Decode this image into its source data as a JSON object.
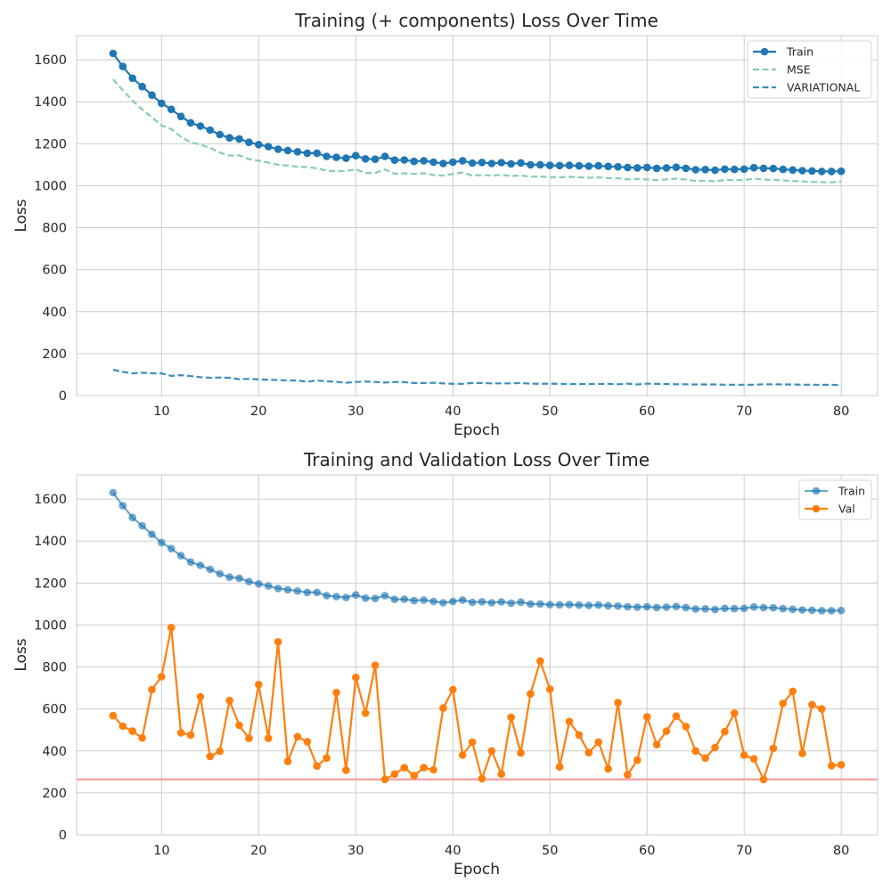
{
  "chart_data": [
    {
      "type": "line",
      "title": "Training (+ components) Loss Over Time",
      "xlabel": "Epoch",
      "ylabel": "Loss",
      "xlim": [
        1.25,
        83.75
      ],
      "ylim": [
        0,
        1715
      ],
      "xticks": [
        10,
        20,
        30,
        40,
        50,
        60,
        70,
        80
      ],
      "yticks": [
        0,
        200,
        400,
        600,
        800,
        1000,
        1200,
        1400,
        1600
      ],
      "grid": true,
      "legend_position": "top-right",
      "x_start": 5,
      "series": [
        {
          "name": "Train",
          "color": "#1f77b4",
          "style": "solid-marker",
          "values": [
            1630,
            1568,
            1512,
            1472,
            1432,
            1393,
            1364,
            1330,
            1300,
            1284,
            1265,
            1244,
            1228,
            1223,
            1207,
            1196,
            1186,
            1174,
            1168,
            1162,
            1155,
            1155,
            1140,
            1135,
            1131,
            1143,
            1128,
            1126,
            1140,
            1122,
            1123,
            1116,
            1119,
            1112,
            1106,
            1112,
            1119,
            1108,
            1111,
            1106,
            1110,
            1104,
            1109,
            1100,
            1100,
            1097,
            1096,
            1097,
            1095,
            1093,
            1095,
            1092,
            1090,
            1087,
            1085,
            1087,
            1083,
            1085,
            1088,
            1083,
            1076,
            1077,
            1074,
            1079,
            1078,
            1079,
            1086,
            1083,
            1082,
            1078,
            1075,
            1072,
            1070,
            1068,
            1068,
            1069
          ]
        },
        {
          "name": "MSE",
          "color": "#88ccb4",
          "style": "dashed",
          "values": [
            1507,
            1455,
            1406,
            1363,
            1326,
            1287,
            1270,
            1233,
            1207,
            1196,
            1180,
            1158,
            1143,
            1145,
            1127,
            1119,
            1110,
            1100,
            1096,
            1090,
            1089,
            1083,
            1072,
            1069,
            1070,
            1078,
            1061,
            1061,
            1078,
            1057,
            1059,
            1056,
            1059,
            1051,
            1048,
            1056,
            1063,
            1048,
            1051,
            1048,
            1052,
            1046,
            1049,
            1043,
            1044,
            1040,
            1040,
            1042,
            1040,
            1038,
            1040,
            1036,
            1036,
            1030,
            1032,
            1030,
            1027,
            1030,
            1034,
            1029,
            1023,
            1024,
            1021,
            1027,
            1026,
            1027,
            1034,
            1029,
            1028,
            1025,
            1022,
            1020,
            1018,
            1017,
            1016,
            1020
          ]
        },
        {
          "name": "VARIATIONAL",
          "color": "#3e8ebf",
          "style": "dashed",
          "values": [
            123,
            113,
            106,
            109,
            106,
            106,
            94,
            97,
            93,
            88,
            85,
            86,
            85,
            78,
            80,
            77,
            76,
            74,
            72,
            72,
            66,
            72,
            68,
            66,
            61,
            65,
            67,
            65,
            62,
            65,
            64,
            60,
            60,
            61,
            58,
            56,
            56,
            60,
            60,
            58,
            58,
            58,
            60,
            57,
            56,
            57,
            56,
            55,
            55,
            55,
            55,
            56,
            54,
            57,
            53,
            57,
            56,
            55,
            54,
            54,
            53,
            53,
            53,
            52,
            52,
            52,
            52,
            54,
            54,
            53,
            53,
            52,
            52,
            51,
            52,
            49
          ]
        }
      ]
    },
    {
      "type": "line",
      "title": "Training and Validation Loss Over Time",
      "xlabel": "Epoch",
      "ylabel": "Loss",
      "xlim": [
        1.25,
        83.75
      ],
      "ylim": [
        0,
        1715
      ],
      "xticks": [
        10,
        20,
        30,
        40,
        50,
        60,
        70,
        80
      ],
      "yticks": [
        0,
        200,
        400,
        600,
        800,
        1000,
        1200,
        1400,
        1600
      ],
      "grid": true,
      "legend_position": "top-right",
      "x_start": 5,
      "hline": {
        "y": 264,
        "color": "#f4a6a6"
      },
      "series": [
        {
          "name": "Train",
          "color": "#1f77b4",
          "style": "solid-marker-faded",
          "values": [
            1630,
            1568,
            1512,
            1472,
            1432,
            1393,
            1364,
            1330,
            1300,
            1284,
            1265,
            1244,
            1228,
            1223,
            1207,
            1196,
            1186,
            1174,
            1168,
            1162,
            1155,
            1155,
            1140,
            1135,
            1131,
            1143,
            1128,
            1126,
            1140,
            1122,
            1123,
            1116,
            1119,
            1112,
            1106,
            1112,
            1119,
            1108,
            1111,
            1106,
            1110,
            1104,
            1109,
            1100,
            1100,
            1097,
            1096,
            1097,
            1095,
            1093,
            1095,
            1092,
            1090,
            1087,
            1085,
            1087,
            1083,
            1085,
            1088,
            1083,
            1076,
            1077,
            1074,
            1079,
            1078,
            1079,
            1086,
            1083,
            1082,
            1078,
            1075,
            1072,
            1070,
            1068,
            1068,
            1069
          ]
        },
        {
          "name": "Val",
          "color": "#ff7f0e",
          "style": "solid-marker",
          "values": [
            568,
            518,
            494,
            462,
            692,
            754,
            988,
            486,
            476,
            658,
            374,
            398,
            640,
            522,
            460,
            716,
            460,
            920,
            350,
            468,
            444,
            328,
            366,
            678,
            308,
            750,
            580,
            808,
            264,
            290,
            320,
            282,
            320,
            310,
            604,
            692,
            380,
            442,
            268,
            400,
            290,
            560,
            390,
            672,
            828,
            694,
            324,
            540,
            476,
            392,
            442,
            314,
            630,
            286,
            356,
            562,
            430,
            494,
            566,
            516,
            400,
            366,
            416,
            492,
            580,
            380,
            362,
            264,
            412,
            626,
            684,
            388,
            620,
            600,
            330,
            334
          ]
        }
      ]
    }
  ]
}
